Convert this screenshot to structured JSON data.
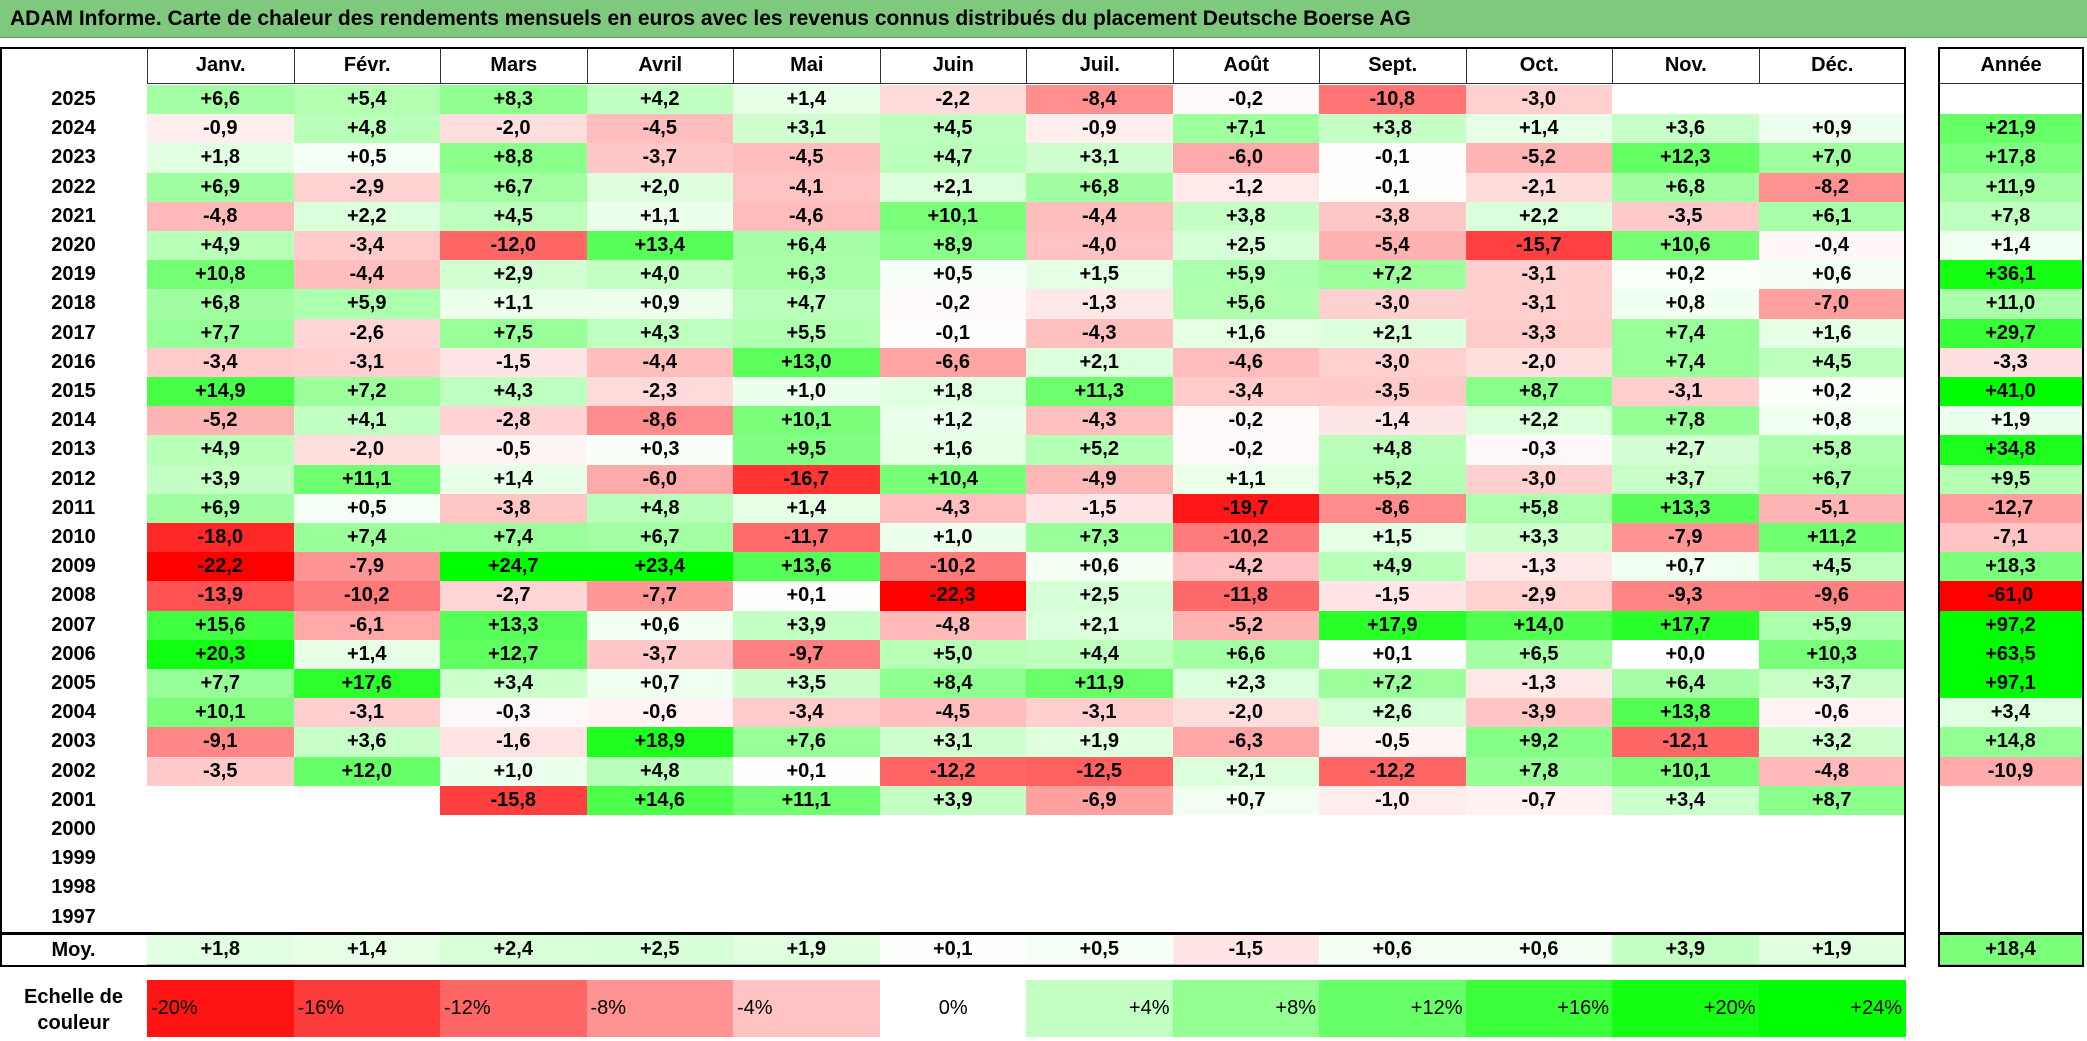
{
  "title": "ADAM Informe. Carte de chaleur des rendements mensuels en euros avec les revenus connus distribués du placement Deutsche Boerse AG",
  "chart_data": {
    "type": "heatmap",
    "months": [
      "Janv.",
      "Févr.",
      "Mars",
      "Avril",
      "Mai",
      "Juin",
      "Juil.",
      "Août",
      "Sept.",
      "Oct.",
      "Nov.",
      "Déc."
    ],
    "year_header": "Année",
    "rows": [
      {
        "year": "2025",
        "months": [
          "+6,6",
          "+5,4",
          "+8,3",
          "+4,2",
          "+1,4",
          "-2,2",
          "-8,4",
          "-0,2",
          "-10,8",
          "-3,0",
          "",
          ""
        ],
        "annual": ""
      },
      {
        "year": "2024",
        "months": [
          "-0,9",
          "+4,8",
          "-2,0",
          "-4,5",
          "+3,1",
          "+4,5",
          "-0,9",
          "+7,1",
          "+3,8",
          "+1,4",
          "+3,6",
          "+0,9"
        ],
        "annual": "+21,9"
      },
      {
        "year": "2023",
        "months": [
          "+1,8",
          "+0,5",
          "+8,8",
          "-3,7",
          "-4,5",
          "+4,7",
          "+3,1",
          "-6,0",
          "-0,1",
          "-5,2",
          "+12,3",
          "+7,0"
        ],
        "annual": "+17,8"
      },
      {
        "year": "2022",
        "months": [
          "+6,9",
          "-2,9",
          "+6,7",
          "+2,0",
          "-4,1",
          "+2,1",
          "+6,8",
          "-1,2",
          "-0,1",
          "-2,1",
          "+6,8",
          "-8,2"
        ],
        "annual": "+11,9"
      },
      {
        "year": "2021",
        "months": [
          "-4,8",
          "+2,2",
          "+4,5",
          "+1,1",
          "-4,6",
          "+10,1",
          "-4,4",
          "+3,8",
          "-3,8",
          "+2,2",
          "-3,5",
          "+6,1"
        ],
        "annual": "+7,8"
      },
      {
        "year": "2020",
        "months": [
          "+4,9",
          "-3,4",
          "-12,0",
          "+13,4",
          "+6,4",
          "+8,9",
          "-4,0",
          "+2,5",
          "-5,4",
          "-15,7",
          "+10,6",
          "-0,4"
        ],
        "annual": "+1,4"
      },
      {
        "year": "2019",
        "months": [
          "+10,8",
          "-4,4",
          "+2,9",
          "+4,0",
          "+6,3",
          "+0,5",
          "+1,5",
          "+5,9",
          "+7,2",
          "-3,1",
          "+0,2",
          "+0,6"
        ],
        "annual": "+36,1"
      },
      {
        "year": "2018",
        "months": [
          "+6,8",
          "+5,9",
          "+1,1",
          "+0,9",
          "+4,7",
          "-0,2",
          "-1,3",
          "+5,6",
          "-3,0",
          "-3,1",
          "+0,8",
          "-7,0"
        ],
        "annual": "+11,0"
      },
      {
        "year": "2017",
        "months": [
          "+7,7",
          "-2,6",
          "+7,5",
          "+4,3",
          "+5,5",
          "-0,1",
          "-4,3",
          "+1,6",
          "+2,1",
          "-3,3",
          "+7,4",
          "+1,6"
        ],
        "annual": "+29,7"
      },
      {
        "year": "2016",
        "months": [
          "-3,4",
          "-3,1",
          "-1,5",
          "-4,4",
          "+13,0",
          "-6,6",
          "+2,1",
          "-4,6",
          "-3,0",
          "-2,0",
          "+7,4",
          "+4,5"
        ],
        "annual": "-3,3"
      },
      {
        "year": "2015",
        "months": [
          "+14,9",
          "+7,2",
          "+4,3",
          "-2,3",
          "+1,0",
          "+1,8",
          "+11,3",
          "-3,4",
          "-3,5",
          "+8,7",
          "-3,1",
          "+0,2"
        ],
        "annual": "+41,0"
      },
      {
        "year": "2014",
        "months": [
          "-5,2",
          "+4,1",
          "-2,8",
          "-8,6",
          "+10,1",
          "+1,2",
          "-4,3",
          "-0,2",
          "-1,4",
          "+2,2",
          "+7,8",
          "+0,8"
        ],
        "annual": "+1,9"
      },
      {
        "year": "2013",
        "months": [
          "+4,9",
          "-2,0",
          "-0,5",
          "+0,3",
          "+9,5",
          "+1,6",
          "+5,2",
          "-0,2",
          "+4,8",
          "-0,3",
          "+2,7",
          "+5,8"
        ],
        "annual": "+34,8"
      },
      {
        "year": "2012",
        "months": [
          "+3,9",
          "+11,1",
          "+1,4",
          "-6,0",
          "-16,7",
          "+10,4",
          "-4,9",
          "+1,1",
          "+5,2",
          "-3,0",
          "+3,7",
          "+6,7"
        ],
        "annual": "+9,5"
      },
      {
        "year": "2011",
        "months": [
          "+6,9",
          "+0,5",
          "-3,8",
          "+4,8",
          "+1,4",
          "-4,3",
          "-1,5",
          "-19,7",
          "-8,6",
          "+5,8",
          "+13,3",
          "-5,1"
        ],
        "annual": "-12,7"
      },
      {
        "year": "2010",
        "months": [
          "-18,0",
          "+7,4",
          "+7,4",
          "+6,7",
          "-11,7",
          "+1,0",
          "+7,3",
          "-10,2",
          "+1,5",
          "+3,3",
          "-7,9",
          "+11,2"
        ],
        "annual": "-7,1"
      },
      {
        "year": "2009",
        "months": [
          "-22,2",
          "-7,9",
          "+24,7",
          "+23,4",
          "+13,6",
          "-10,2",
          "+0,6",
          "-4,2",
          "+4,9",
          "-1,3",
          "+0,7",
          "+4,5"
        ],
        "annual": "+18,3"
      },
      {
        "year": "2008",
        "months": [
          "-13,9",
          "-10,2",
          "-2,7",
          "-7,7",
          "+0,1",
          "-22,3",
          "+2,5",
          "-11,8",
          "-1,5",
          "-2,9",
          "-9,3",
          "-9,6"
        ],
        "annual": "-61,0"
      },
      {
        "year": "2007",
        "months": [
          "+15,6",
          "-6,1",
          "+13,3",
          "+0,6",
          "+3,9",
          "-4,8",
          "+2,1",
          "-5,2",
          "+17,9",
          "+14,0",
          "+17,7",
          "+5,9"
        ],
        "annual": "+97,2"
      },
      {
        "year": "2006",
        "months": [
          "+20,3",
          "+1,4",
          "+12,7",
          "-3,7",
          "-9,7",
          "+5,0",
          "+4,4",
          "+6,6",
          "+0,1",
          "+6,5",
          "+0,0",
          "+10,3"
        ],
        "annual": "+63,5"
      },
      {
        "year": "2005",
        "months": [
          "+7,7",
          "+17,6",
          "+3,4",
          "+0,7",
          "+3,5",
          "+8,4",
          "+11,9",
          "+2,3",
          "+7,2",
          "-1,3",
          "+6,4",
          "+3,7"
        ],
        "annual": "+97,1"
      },
      {
        "year": "2004",
        "months": [
          "+10,1",
          "-3,1",
          "-0,3",
          "-0,6",
          "-3,4",
          "-4,5",
          "-3,1",
          "-2,0",
          "+2,6",
          "-3,9",
          "+13,8",
          "-0,6"
        ],
        "annual": "+3,4"
      },
      {
        "year": "2003",
        "months": [
          "-9,1",
          "+3,6",
          "-1,6",
          "+18,9",
          "+7,6",
          "+3,1",
          "+1,9",
          "-6,3",
          "-0,5",
          "+9,2",
          "-12,1",
          "+3,2"
        ],
        "annual": "+14,8"
      },
      {
        "year": "2002",
        "months": [
          "-3,5",
          "+12,0",
          "+1,0",
          "+4,8",
          "+0,1",
          "-12,2",
          "-12,5",
          "+2,1",
          "-12,2",
          "+7,8",
          "+10,1",
          "-4,8"
        ],
        "annual": "-10,9"
      },
      {
        "year": "2001",
        "months": [
          "",
          "",
          "-15,8",
          "+14,6",
          "+11,1",
          "+3,9",
          "-6,9",
          "+0,7",
          "-1,0",
          "-0,7",
          "+3,4",
          "+8,7"
        ],
        "annual": ""
      },
      {
        "year": "2000",
        "months": [
          "",
          "",
          "",
          "",
          "",
          "",
          "",
          "",
          "",
          "",
          "",
          ""
        ],
        "annual": ""
      },
      {
        "year": "1999",
        "months": [
          "",
          "",
          "",
          "",
          "",
          "",
          "",
          "",
          "",
          "",
          "",
          ""
        ],
        "annual": ""
      },
      {
        "year": "1998",
        "months": [
          "",
          "",
          "",
          "",
          "",
          "",
          "",
          "",
          "",
          "",
          "",
          ""
        ],
        "annual": ""
      },
      {
        "year": "1997",
        "months": [
          "",
          "",
          "",
          "",
          "",
          "",
          "",
          "",
          "",
          "",
          "",
          ""
        ],
        "annual": ""
      }
    ],
    "average": {
      "label": "Moy.",
      "months": [
        "+1,8",
        "+1,4",
        "+2,4",
        "+2,5",
        "+1,9",
        "+0,1",
        "+0,5",
        "-1,5",
        "+0,6",
        "+0,6",
        "+3,9",
        "+1,9"
      ],
      "annual": "+18,4"
    },
    "scale": {
      "label_line1": "Echelle de",
      "label_line2": "couleur",
      "stops": [
        {
          "label": "-20%",
          "value": -20
        },
        {
          "label": "-16%",
          "value": -16
        },
        {
          "label": "-12%",
          "value": -12
        },
        {
          "label": "-8%",
          "value": -8
        },
        {
          "label": "-4%",
          "value": -4
        },
        {
          "label": "0%",
          "value": 0
        },
        {
          "label": "+4%",
          "value": 4
        },
        {
          "label": "+8%",
          "value": 8
        },
        {
          "label": "+12%",
          "value": 12
        },
        {
          "label": "+16%",
          "value": 16
        },
        {
          "label": "+20%",
          "value": 20
        },
        {
          "label": "+24%",
          "value": 24
        }
      ]
    },
    "colors": {
      "negative_max": "#ff0000",
      "neutral": "#ffffff",
      "positive_max": "#00ff00",
      "title_bar": "#7fc97f"
    }
  }
}
